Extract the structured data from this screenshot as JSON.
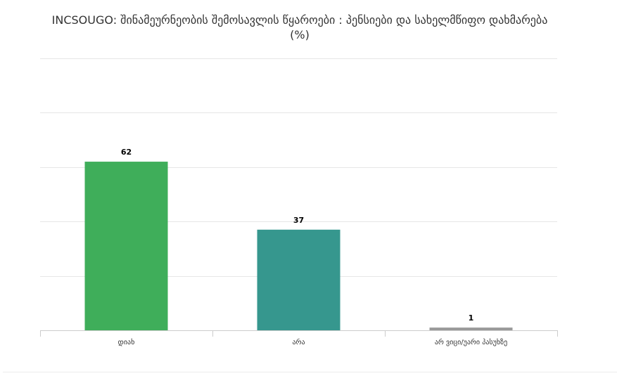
{
  "chart_data": {
    "type": "bar",
    "title": "INCSOUGO: შინამეურნეობის შემოსავლის წყაროები : პენსიები და სახელმწიფო დახმარება (%)",
    "categories": [
      "დიახ",
      "არა",
      "არ ვიცი/უარი პასუხზე"
    ],
    "values": [
      62,
      37,
      1
    ],
    "colors": [
      "#3fae5a",
      "#36978e",
      "#999999"
    ],
    "ylim": [
      0,
      100
    ],
    "grid": true,
    "legend": "none"
  }
}
